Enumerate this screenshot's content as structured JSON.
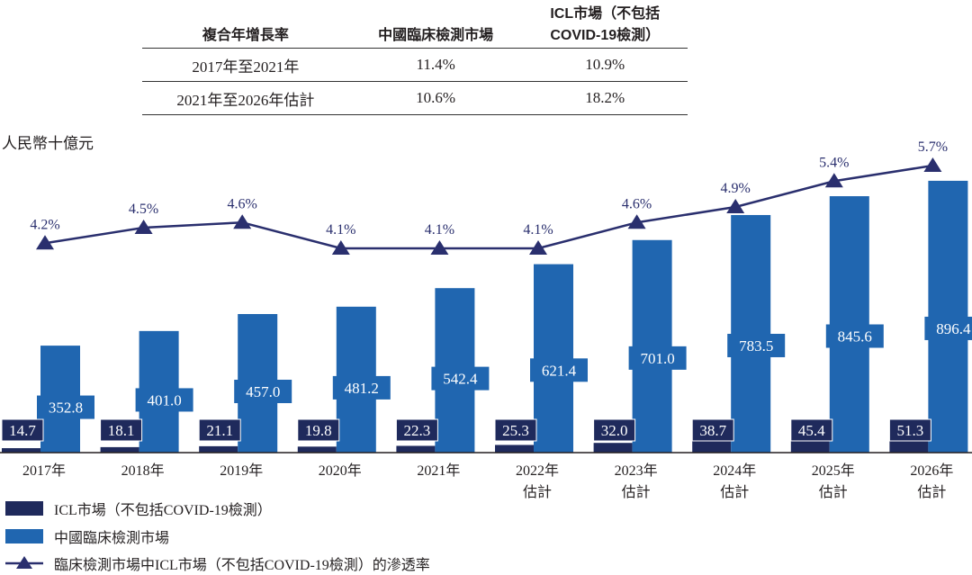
{
  "table": {
    "headers": [
      "複合年增長率",
      "中國臨床檢測市場",
      "ICL市場（不包括\nCOVID-19檢測）"
    ],
    "rows": [
      [
        "2017年至2021年",
        "11.4%",
        "10.9%"
      ],
      [
        "2021年至2026年估計",
        "10.6%",
        "18.2%"
      ]
    ]
  },
  "chart_data": {
    "type": "bar+line",
    "ylabel": "人民幣十億元",
    "categories": [
      "2017年",
      "2018年",
      "2019年",
      "2020年",
      "2021年",
      "2022年\n估計",
      "2023年\n估計",
      "2024年\n估計",
      "2025年\n估計",
      "2026年\n估計"
    ],
    "series": [
      {
        "name": "ICL市場（不包括COVID-19檢測）",
        "type": "bar",
        "color": "#1f2a5c",
        "values": [
          14.7,
          18.1,
          21.1,
          19.8,
          22.3,
          25.3,
          32.0,
          38.7,
          45.4,
          51.3
        ]
      },
      {
        "name": "中國臨床檢測市場",
        "type": "bar",
        "color": "#2066b0",
        "values": [
          352.8,
          401.0,
          457.0,
          481.2,
          542.4,
          621.4,
          701.0,
          783.5,
          845.6,
          896.4
        ]
      },
      {
        "name": "臨床檢測市場中ICL市場（不包括COVID-19檢測）的滲透率",
        "type": "line",
        "color": "#2a2f6e",
        "unit": "%",
        "values": [
          4.2,
          4.5,
          4.6,
          4.1,
          4.1,
          4.1,
          4.6,
          4.9,
          5.4,
          5.7
        ]
      }
    ],
    "legend": "bottom-left"
  }
}
